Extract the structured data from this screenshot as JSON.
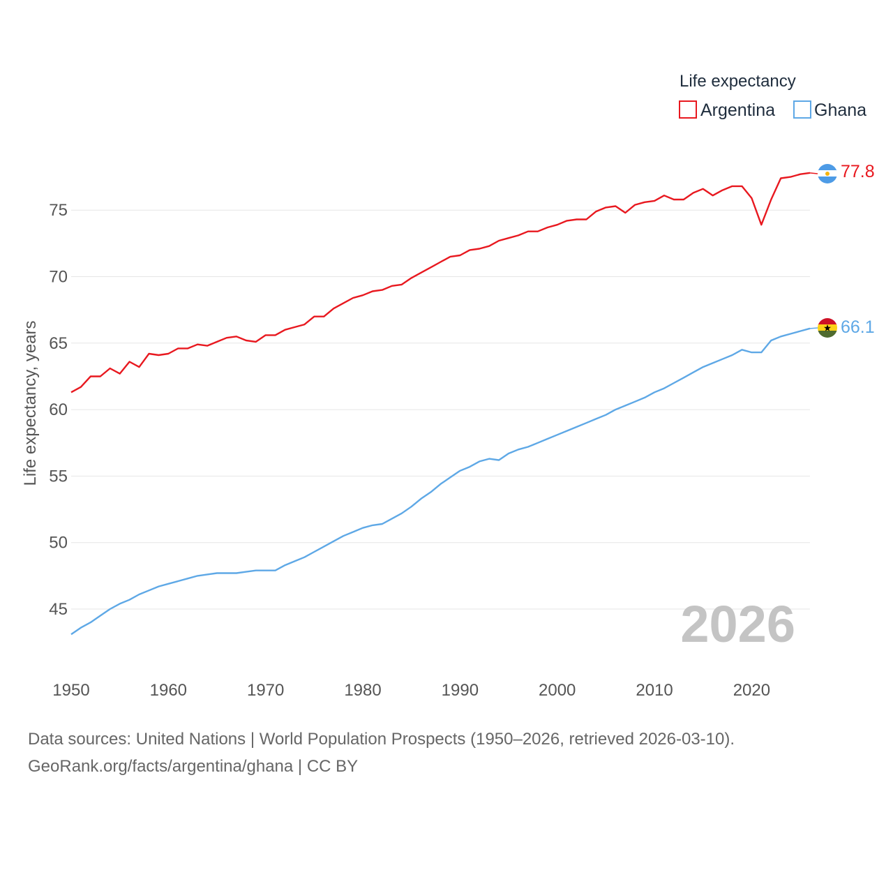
{
  "chart_data": {
    "type": "line",
    "title": "",
    "legend_title": "Life expectancy",
    "ylabel": "Life expectancy, years",
    "xlabel": "",
    "xlim": [
      1950,
      2026
    ],
    "ylim": [
      41.5,
      80.5
    ],
    "xticks": [
      1950,
      1960,
      1970,
      1980,
      1990,
      2000,
      2010,
      2020
    ],
    "yticks": [
      45,
      50,
      55,
      60,
      65,
      70,
      75
    ],
    "grid": true,
    "legend_position": "top-right",
    "year_label": "2026",
    "x": [
      1950,
      1951,
      1952,
      1953,
      1954,
      1955,
      1956,
      1957,
      1958,
      1959,
      1960,
      1961,
      1962,
      1963,
      1964,
      1965,
      1966,
      1967,
      1968,
      1969,
      1970,
      1971,
      1972,
      1973,
      1974,
      1975,
      1976,
      1977,
      1978,
      1979,
      1980,
      1981,
      1982,
      1983,
      1984,
      1985,
      1986,
      1987,
      1988,
      1989,
      1990,
      1991,
      1992,
      1993,
      1994,
      1995,
      1996,
      1997,
      1998,
      1999,
      2000,
      2001,
      2002,
      2003,
      2004,
      2005,
      2006,
      2007,
      2008,
      2009,
      2010,
      2011,
      2012,
      2013,
      2014,
      2015,
      2016,
      2017,
      2018,
      2019,
      2020,
      2021,
      2022,
      2023,
      2024,
      2025,
      2026
    ],
    "series": [
      {
        "name": "Argentina",
        "color": "#e8181f",
        "end_label": "77.8",
        "flag": "argentina-flag-icon",
        "values": [
          61.3,
          61.7,
          62.5,
          62.5,
          63.1,
          62.7,
          63.6,
          63.2,
          64.2,
          64.1,
          64.2,
          64.6,
          64.6,
          64.9,
          64.8,
          65.1,
          65.4,
          65.5,
          65.2,
          65.1,
          65.6,
          65.6,
          66.0,
          66.2,
          66.4,
          67.0,
          67.0,
          67.6,
          68.0,
          68.4,
          68.6,
          68.9,
          69.0,
          69.3,
          69.4,
          69.9,
          70.3,
          70.7,
          71.1,
          71.5,
          71.6,
          72.0,
          72.1,
          72.3,
          72.7,
          72.9,
          73.1,
          73.4,
          73.4,
          73.7,
          73.9,
          74.2,
          74.3,
          74.3,
          74.9,
          75.2,
          75.3,
          74.8,
          75.4,
          75.6,
          75.7,
          76.1,
          75.8,
          75.8,
          76.3,
          76.6,
          76.1,
          76.5,
          76.8,
          76.8,
          75.9,
          73.9,
          75.8,
          77.4,
          77.5,
          77.7,
          77.8
        ]
      },
      {
        "name": "Ghana",
        "color": "#5ea8e6",
        "end_label": "66.1",
        "flag": "ghana-flag-icon",
        "values": [
          43.1,
          43.6,
          44.0,
          44.5,
          45.0,
          45.4,
          45.7,
          46.1,
          46.4,
          46.7,
          46.9,
          47.1,
          47.3,
          47.5,
          47.6,
          47.7,
          47.7,
          47.7,
          47.8,
          47.9,
          47.9,
          47.9,
          48.3,
          48.6,
          48.9,
          49.3,
          49.7,
          50.1,
          50.5,
          50.8,
          51.1,
          51.3,
          51.4,
          51.8,
          52.2,
          52.7,
          53.3,
          53.8,
          54.4,
          54.9,
          55.4,
          55.7,
          56.1,
          56.3,
          56.2,
          56.7,
          57.0,
          57.2,
          57.5,
          57.8,
          58.1,
          58.4,
          58.7,
          59.0,
          59.3,
          59.6,
          60.0,
          60.3,
          60.6,
          60.9,
          61.3,
          61.6,
          62.0,
          62.4,
          62.8,
          63.2,
          63.5,
          63.8,
          64.1,
          64.5,
          64.3,
          64.3,
          65.2,
          65.5,
          65.7,
          65.9,
          66.1
        ]
      }
    ]
  },
  "footer": {
    "source_line": "Data sources: United Nations | World Population Prospects (1950–2026, retrieved 2026-03-10).",
    "credit_line": "GeoRank.org/facts/argentina/ghana | CC BY"
  }
}
